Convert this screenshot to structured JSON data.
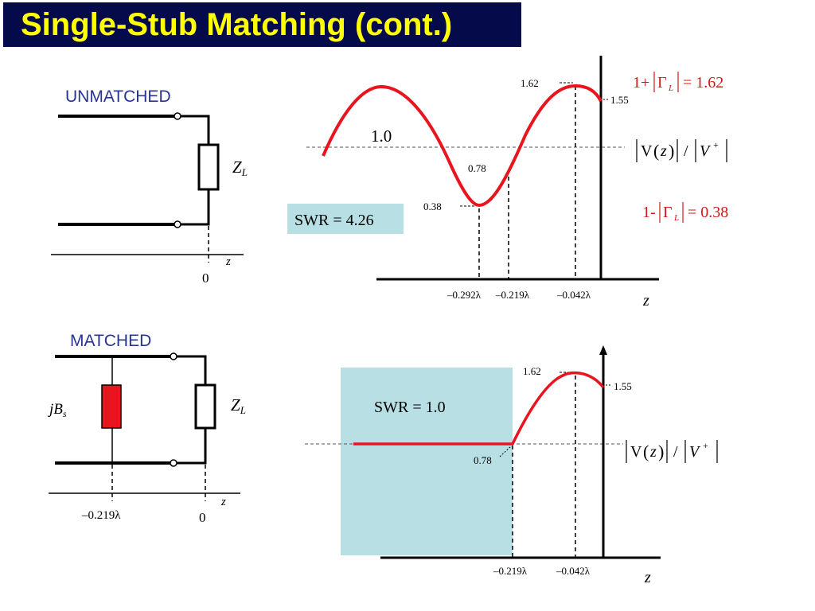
{
  "title": "Single-Stub Matching (cont.)",
  "colors": {
    "title_bg": "#050a4a",
    "title_text": "#ffff00",
    "curve": "#e8141e",
    "label_blue": "#283593",
    "swr_box": "#b7dfe4",
    "stub_fill": "#e8141e",
    "formula_red": "#d01818"
  },
  "unmatched": {
    "heading": "UNMATCHED",
    "load_label": "Z",
    "load_sub": "L",
    "axis_label": "z",
    "zero_label": "0"
  },
  "matched": {
    "heading": "MATCHED",
    "stub_label": "jB",
    "stub_sub": "s",
    "load_label": "Z",
    "load_sub": "L",
    "axis_label": "z",
    "zero_label": "0",
    "stub_position_label": "–0.219λ"
  },
  "plot_top": {
    "level_one_label": "1.0",
    "swr_label": "SWR = 4.26",
    "max_label": "1.62",
    "end_label": "1.55",
    "mid_label": "0.78",
    "min_label": "0.38",
    "xticks": [
      "–0.292λ",
      "–0.219λ",
      "–0.042λ"
    ],
    "axis_label": "z",
    "ylabel": {
      "v_letter": "V",
      "z_letter": "z",
      "slash": "/",
      "vplus": "V",
      "sup": "+"
    },
    "formula_max": {
      "prefix": "1+",
      "gamma": "Γ",
      "sub": "L",
      "eq": "= 1.62"
    },
    "formula_min": {
      "prefix": "1-",
      "gamma": "Γ",
      "sub": "L",
      "eq": "= 0.38"
    }
  },
  "plot_bottom": {
    "swr_label": "SWR = 1.0",
    "max_label": "1.62",
    "end_label": "1.55",
    "mid_label": "0.78",
    "xticks": [
      "–0.219λ",
      "–0.042λ"
    ],
    "axis_label": "z",
    "ylabel": {
      "v_letter": "V",
      "z_letter": "z",
      "slash": "/",
      "vplus": "V",
      "sup": "+"
    }
  },
  "chart_data": [
    {
      "type": "line",
      "title": "",
      "xlabel": "z",
      "ylabel": "|V(z)|/|V+|",
      "series": [
        {
          "name": "",
          "x_lambda": [
            -0.3,
            -0.292,
            -0.219,
            -0.042,
            0.0
          ],
          "y": [
            0.75,
            0.38,
            0.78,
            1.62,
            1.55
          ]
        }
      ],
      "reference_level": 1.0,
      "annotations": [
        "SWR = 4.26",
        "1+|Γ_L| = 1.62",
        "1-|Γ_L| = 0.38"
      ]
    },
    {
      "type": "line",
      "title": "",
      "xlabel": "z",
      "ylabel": "|V(z)|/|V+|",
      "series": [
        {
          "name": "",
          "x_lambda": [
            -0.4,
            -0.219,
            -0.042,
            0.0
          ],
          "y": [
            1.0,
            1.0,
            1.62,
            1.55
          ]
        }
      ],
      "reference_level": 1.0,
      "annotations": [
        "SWR = 1.0"
      ]
    }
  ]
}
